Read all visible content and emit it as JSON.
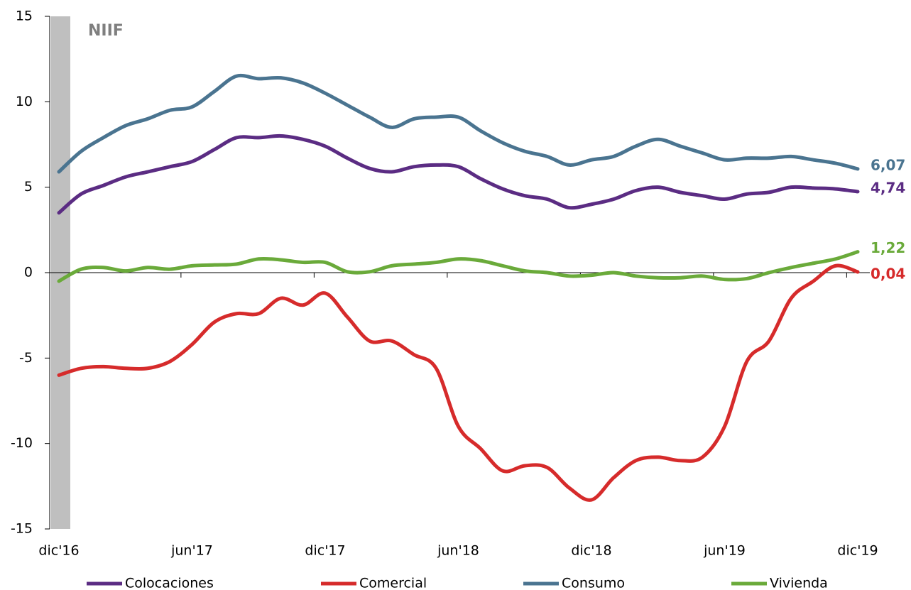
{
  "chart_data": {
    "type": "line",
    "annotation": "NIIF",
    "categories": [
      "dic'16",
      null,
      null,
      null,
      null,
      null,
      "jun'17",
      null,
      null,
      null,
      null,
      null,
      "dic'17",
      null,
      null,
      null,
      null,
      null,
      "jun'18",
      null,
      null,
      null,
      null,
      null,
      "dic'18",
      null,
      null,
      null,
      null,
      null,
      "jun'19",
      null,
      null,
      null,
      null,
      null,
      "dic'19"
    ],
    "ylim": [
      -15,
      15
    ],
    "yticks": [
      -15,
      -10,
      -5,
      0,
      5,
      10,
      15
    ],
    "series": [
      {
        "name": "Colocaciones",
        "color": "#5b2c83",
        "values": [
          3.5,
          4.6,
          5.1,
          5.6,
          5.9,
          6.2,
          6.5,
          7.2,
          7.9,
          7.9,
          8.0,
          7.8,
          7.4,
          6.7,
          6.1,
          5.9,
          6.2,
          6.3,
          6.2,
          5.5,
          4.9,
          4.5,
          4.3,
          3.8,
          4.0,
          4.3,
          4.8,
          5.0,
          4.7,
          4.5,
          4.3,
          4.6,
          4.7,
          5.0,
          4.95,
          4.9,
          4.74
        ],
        "value_labels": [
          null,
          null,
          null,
          null,
          null,
          null,
          null,
          null,
          null,
          null,
          null,
          null,
          null,
          null,
          null,
          null,
          null,
          null,
          null,
          null,
          null,
          null,
          null,
          null,
          null,
          null,
          null,
          null,
          null,
          null,
          null,
          null,
          null,
          null,
          null,
          null,
          "4,74"
        ]
      },
      {
        "name": "Comercial",
        "color": "#d62b2b",
        "values": [
          -6.0,
          -5.6,
          -5.5,
          -5.6,
          -5.6,
          -5.2,
          -4.2,
          -2.9,
          -2.4,
          -2.4,
          -1.5,
          -1.9,
          -1.2,
          -2.6,
          -4.0,
          -4.0,
          -4.8,
          -5.6,
          -9.0,
          -10.3,
          -11.6,
          -11.3,
          -11.4,
          -12.6,
          -13.3,
          -12.0,
          -11.0,
          -10.8,
          -11.0,
          -10.8,
          -9.0,
          -5.2,
          -4.0,
          -1.5,
          -0.5,
          0.4,
          0.04
        ],
        "value_labels": [
          null,
          null,
          null,
          null,
          null,
          null,
          null,
          null,
          null,
          null,
          null,
          null,
          null,
          null,
          null,
          null,
          null,
          null,
          null,
          null,
          null,
          null,
          null,
          null,
          null,
          null,
          null,
          null,
          null,
          null,
          null,
          null,
          null,
          null,
          null,
          null,
          "0,04"
        ]
      },
      {
        "name": "Consumo",
        "color": "#4a7490",
        "values": [
          5.9,
          7.1,
          7.9,
          8.6,
          9.0,
          9.5,
          9.7,
          10.6,
          11.5,
          11.35,
          11.4,
          11.1,
          10.5,
          9.8,
          9.1,
          8.5,
          9.0,
          9.1,
          9.1,
          8.3,
          7.6,
          7.1,
          6.8,
          6.3,
          6.6,
          6.8,
          7.4,
          7.8,
          7.4,
          7.0,
          6.6,
          6.7,
          6.7,
          6.8,
          6.6,
          6.4,
          6.07
        ],
        "value_labels": [
          null,
          null,
          null,
          null,
          null,
          null,
          null,
          null,
          null,
          null,
          null,
          null,
          null,
          null,
          null,
          null,
          null,
          null,
          null,
          null,
          null,
          null,
          null,
          null,
          null,
          null,
          null,
          null,
          null,
          null,
          null,
          null,
          null,
          null,
          null,
          null,
          "6,07"
        ]
      },
      {
        "name": "Vivienda",
        "color": "#6aaa3a",
        "values": [
          -0.5,
          0.2,
          0.3,
          0.1,
          0.3,
          0.2,
          0.4,
          0.45,
          0.5,
          0.8,
          0.75,
          0.6,
          0.6,
          0.05,
          0.05,
          0.4,
          0.5,
          0.6,
          0.8,
          0.7,
          0.4,
          0.1,
          0.0,
          -0.2,
          -0.15,
          0.0,
          -0.2,
          -0.3,
          -0.3,
          -0.2,
          -0.4,
          -0.35,
          0.0,
          0.3,
          0.55,
          0.8,
          1.22
        ],
        "value_labels": [
          null,
          null,
          null,
          null,
          null,
          null,
          null,
          null,
          null,
          null,
          null,
          null,
          null,
          null,
          null,
          null,
          null,
          null,
          null,
          null,
          null,
          null,
          null,
          null,
          null,
          null,
          null,
          null,
          null,
          null,
          null,
          null,
          null,
          null,
          null,
          null,
          "1,22"
        ]
      }
    ]
  }
}
